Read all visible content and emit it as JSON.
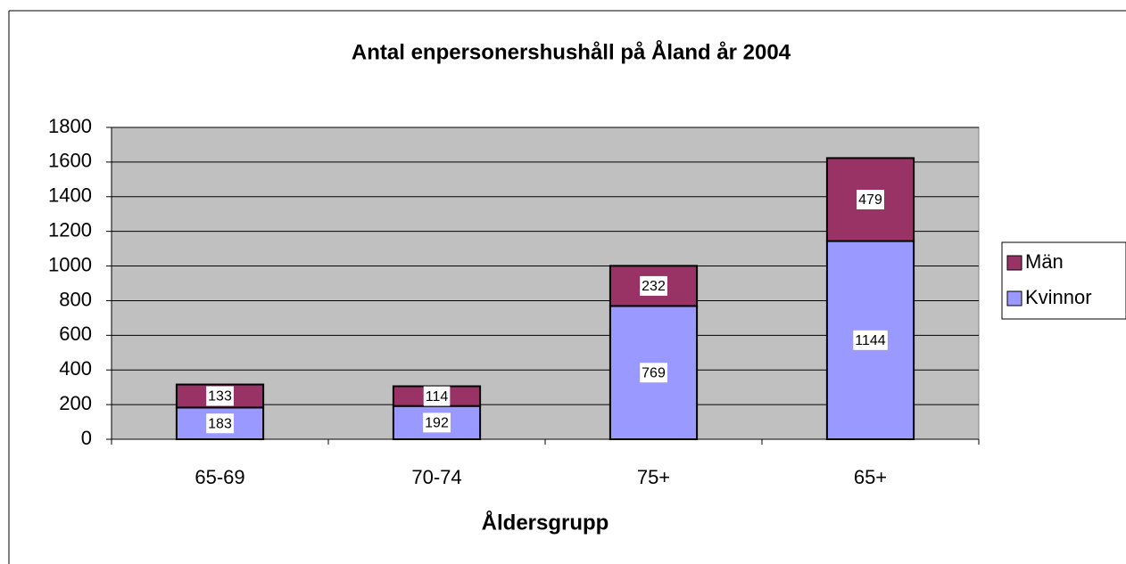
{
  "chart_data": {
    "type": "stacked_bar",
    "title": "Antal enpersonershushåll på Åland år 2004",
    "x_label": "Åldersgrupp",
    "categories": [
      "65-69",
      "70-74",
      "75+",
      "65+"
    ],
    "series": [
      {
        "name": "Kvinnor",
        "color": "#9999ff",
        "values": [
          183,
          192,
          769,
          1144
        ]
      },
      {
        "name": "Män",
        "color": "#993366",
        "values": [
          133,
          114,
          232,
          479
        ]
      }
    ],
    "ylim": [
      0,
      1800
    ],
    "yticks": [
      0,
      200,
      400,
      600,
      800,
      1000,
      1200,
      1400,
      1600,
      1800
    ],
    "grid": true,
    "legend": "right"
  }
}
